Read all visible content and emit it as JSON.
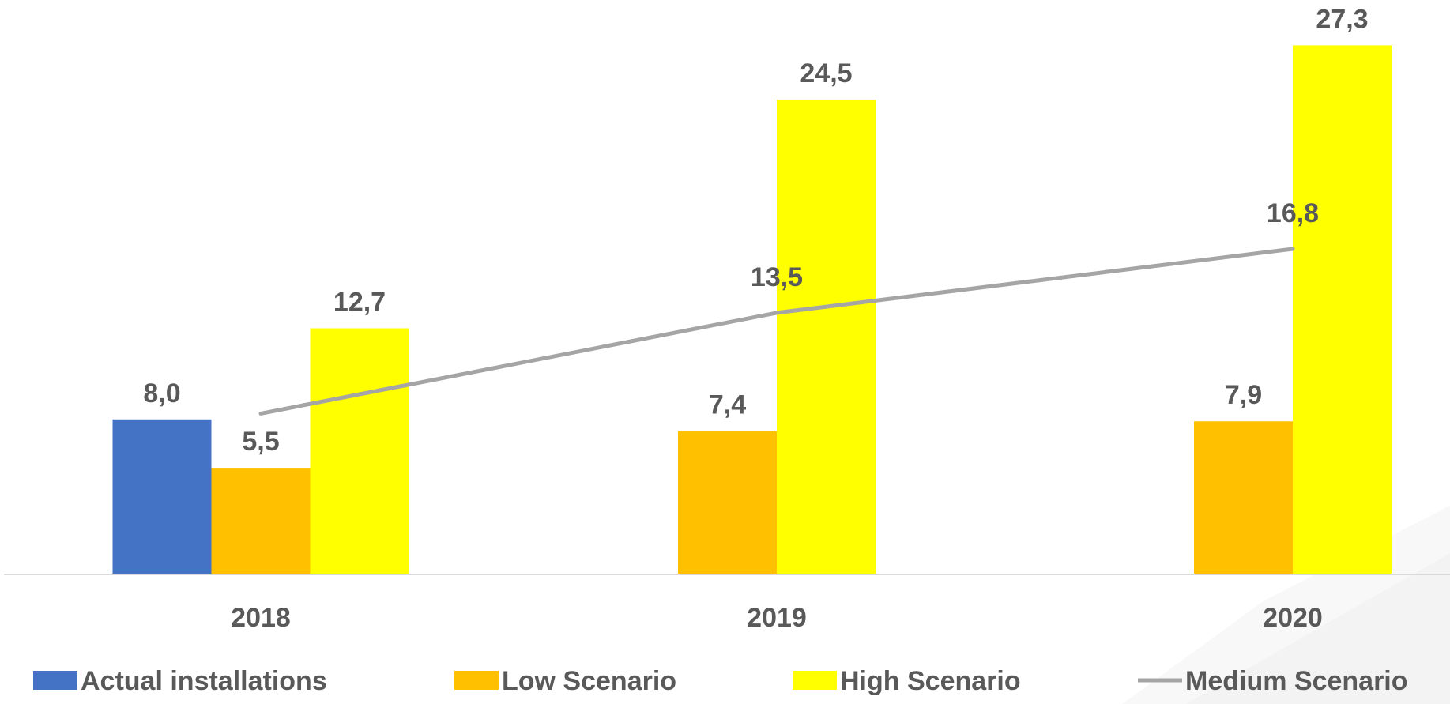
{
  "chart_data": {
    "type": "bar",
    "categories": [
      "2018",
      "2019",
      "2020"
    ],
    "series": [
      {
        "name": "Actual installations",
        "kind": "bar",
        "color": "#4472C4",
        "values": [
          8.0,
          null,
          null
        ],
        "labels": [
          "8,0",
          null,
          null
        ]
      },
      {
        "name": "Low Scenario",
        "kind": "bar",
        "color": "#FFC000",
        "values": [
          5.5,
          7.4,
          7.9
        ],
        "labels": [
          "5,5",
          "7,4",
          "7,9"
        ]
      },
      {
        "name": "High Scenario",
        "kind": "bar",
        "color": "#FFFF00",
        "values": [
          12.7,
          24.5,
          27.3
        ],
        "labels": [
          "12,7",
          "24,5",
          "27,3"
        ]
      },
      {
        "name": "Medium Scenario",
        "kind": "line",
        "color": "#A5A5A5",
        "values": [
          8.3,
          13.5,
          16.8
        ],
        "labels": [
          null,
          "13,5",
          "16,8"
        ]
      }
    ],
    "ylim": [
      0,
      28.5
    ],
    "legend": "bottom",
    "grid": false
  }
}
